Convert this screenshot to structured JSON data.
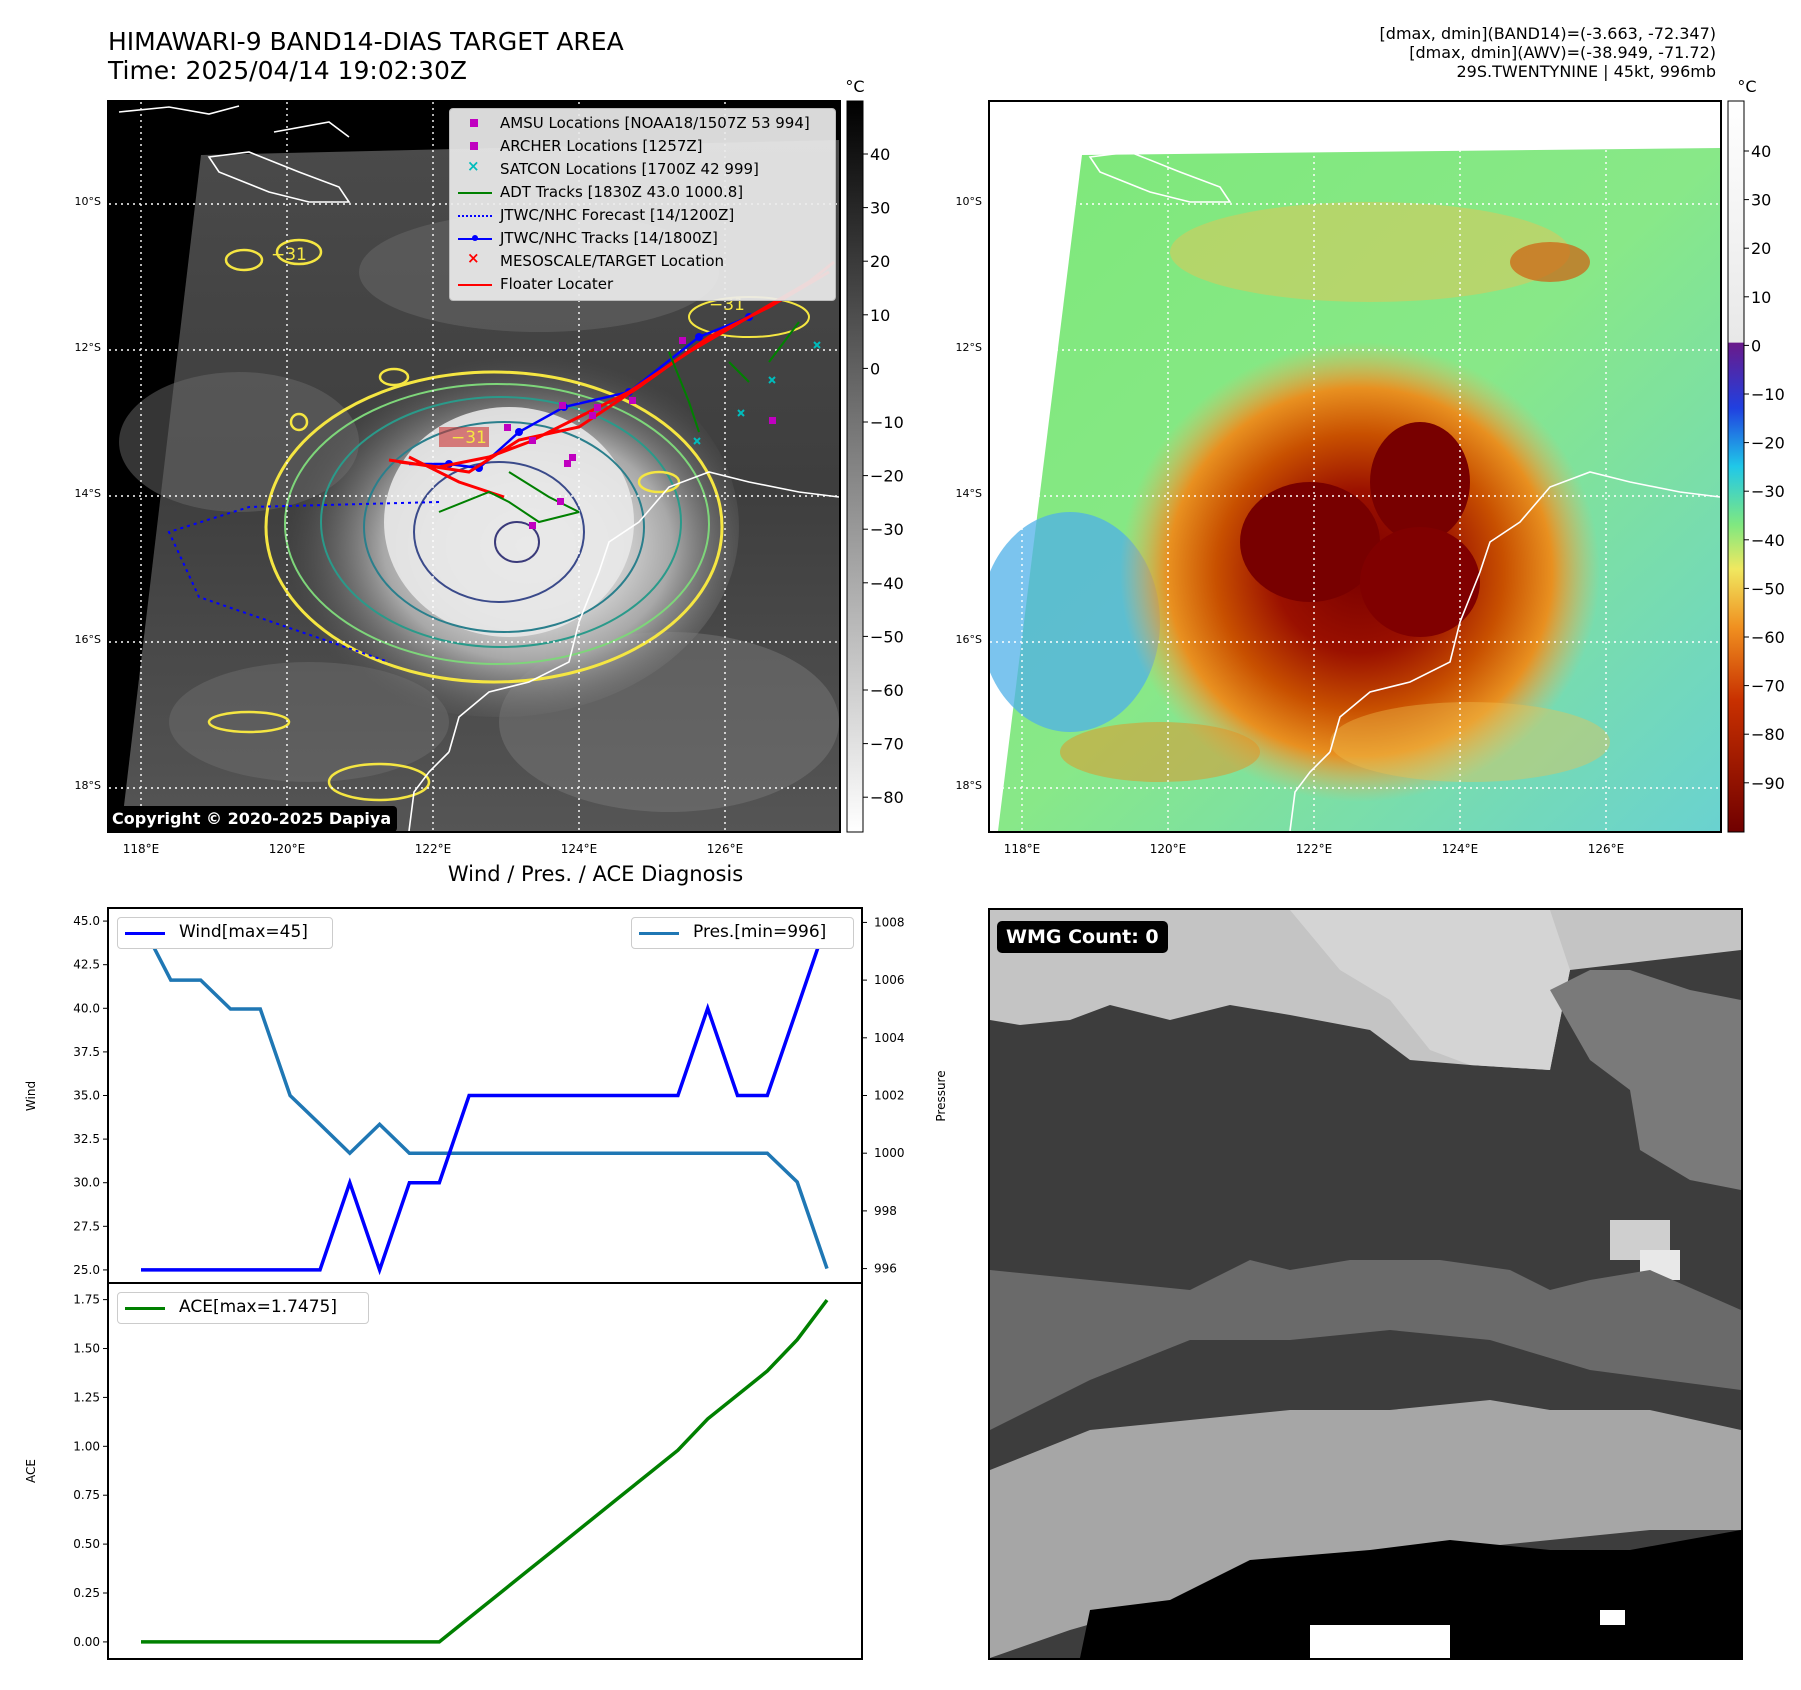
{
  "header": {
    "title": "HIMAWARI-9 BAND14-DIAS TARGET AREA",
    "time": "Time: 2025/04/14 19:02:30Z",
    "stats": [
      "[dmax, dmin](BAND14)=(-3.663, -72.347)",
      "[dmax, dmin](AWV)=(-38.949, -71.72)",
      "29S.TWENTYNINE | 45kt, 996mb"
    ]
  },
  "map": {
    "lon_ticks": [
      "118°E",
      "120°E",
      "122°E",
      "124°E",
      "126°E"
    ],
    "lat_ticks": [
      "10°S",
      "12°S",
      "14°S",
      "16°S",
      "18°S"
    ],
    "copyright": "Copyright © 2020-2025 Dapiya",
    "contour_label": "−31",
    "legend": [
      {
        "label": "AMSU Locations [NOAA18/1507Z 53 994]",
        "marker": "square",
        "color": "#c000c0"
      },
      {
        "label": "ARCHER Locations [1257Z]",
        "marker": "square",
        "color": "#c000c0"
      },
      {
        "label": "SATCON Locations [1700Z 42 999]",
        "marker": "x",
        "color": "#00bcbc"
      },
      {
        "label": "ADT Tracks [1830Z 43.0 1000.8]",
        "marker": "line",
        "color": "#008000"
      },
      {
        "label": "JTWC/NHC Forecast [14/1200Z]",
        "marker": "dotted",
        "color": "#0000ff"
      },
      {
        "label": "JTWC/NHC Tracks [14/1800Z]",
        "marker": "line-dot",
        "color": "#0000ff"
      },
      {
        "label": "MESOSCALE/TARGET Location",
        "marker": "x",
        "color": "#ff0000"
      },
      {
        "label": "Floater Locater",
        "marker": "line",
        "color": "#ff0000"
      }
    ]
  },
  "colorbars": {
    "unit": "°C",
    "bw_ticks": [
      "40",
      "30",
      "20",
      "10",
      "0",
      "−10",
      "−20",
      "−30",
      "−40",
      "−50",
      "−60",
      "−70",
      "−80"
    ],
    "awv_ticks": [
      "40",
      "30",
      "20",
      "10",
      "0",
      "−10",
      "−20",
      "−30",
      "−40",
      "−50",
      "−60",
      "−70",
      "−80",
      "−90"
    ]
  },
  "wmg": {
    "label": "WMG Count: 0"
  },
  "chart_data": [
    {
      "type": "line",
      "title": "Wind / Pres. / ACE Diagnosis",
      "ylabel": "Wind",
      "y2label": "Pressure",
      "ylim": [
        24.25,
        45.75
      ],
      "y2lim": [
        995.5,
        1008.5
      ],
      "yticks": [
        "25.0",
        "27.5",
        "30.0",
        "32.5",
        "35.0",
        "37.5",
        "40.0",
        "42.5",
        "45.0"
      ],
      "y2ticks": [
        "996",
        "998",
        "1000",
        "1002",
        "1004",
        "1006",
        "1008"
      ],
      "series": [
        {
          "name": "Wind[max=45]",
          "color": "#0000ff",
          "axis": "left",
          "values": [
            25,
            25,
            25,
            25,
            25,
            25,
            25,
            30,
            25,
            30,
            30,
            35,
            35,
            35,
            35,
            35,
            35,
            35,
            35,
            40,
            35,
            35,
            40,
            45
          ]
        },
        {
          "name": "Pres.[min=996]",
          "color": "#1f77b4",
          "axis": "right",
          "values": [
            1008,
            1006,
            1006,
            1005,
            1005,
            1002,
            1001,
            1000,
            1001,
            1000,
            1000,
            1000,
            1000,
            1000,
            1000,
            1000,
            1000,
            1000,
            1000,
            1000,
            1000,
            1000,
            999,
            996
          ]
        }
      ]
    },
    {
      "type": "line",
      "ylabel": "ACE",
      "ylim": [
        -0.0874,
        1.835
      ],
      "yticks": [
        "0.00",
        "0.25",
        "0.50",
        "0.75",
        "1.00",
        "1.25",
        "1.50",
        "1.75"
      ],
      "series": [
        {
          "name": "ACE[max=1.7475]",
          "color": "#008000",
          "values": [
            0,
            0,
            0,
            0,
            0,
            0,
            0,
            0,
            0,
            0,
            0,
            0.1225,
            0.245,
            0.3675,
            0.49,
            0.6125,
            0.735,
            0.8575,
            0.98,
            1.14,
            1.2625,
            1.385,
            1.545,
            1.7475
          ]
        }
      ]
    }
  ]
}
